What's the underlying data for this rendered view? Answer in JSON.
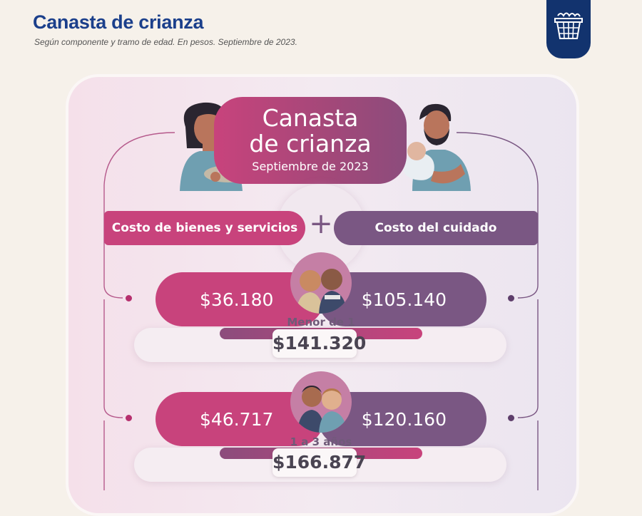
{
  "header": {
    "title": "Canasta de crianza",
    "subtitle": "Según componente y tramo de edad. En pesos. Septiembre de 2023."
  },
  "logo": {
    "icon": "shopping-basket-icon",
    "color": "#12336e"
  },
  "infographic": {
    "title_line1": "Canasta",
    "title_line2": "de crianza",
    "date": "Septiembre de 2023",
    "component_left": "Costo de bienes y servicios",
    "component_right": "Costo del cuidado",
    "operator": "+",
    "rows": [
      {
        "age": "Menor de 1 año",
        "goods": "$36.180",
        "care": "$105.140",
        "total": "$141.320"
      },
      {
        "age": "1 a 3 años",
        "goods": "$46.717",
        "care": "$120.160",
        "total": "$166.877"
      }
    ]
  },
  "colors": {
    "title_blue": "#1b3f8b",
    "magenta": "#c8437c",
    "purple": "#7a5783",
    "card_bg": "#f3eaf1",
    "page_bg": "#f6f1ea"
  }
}
